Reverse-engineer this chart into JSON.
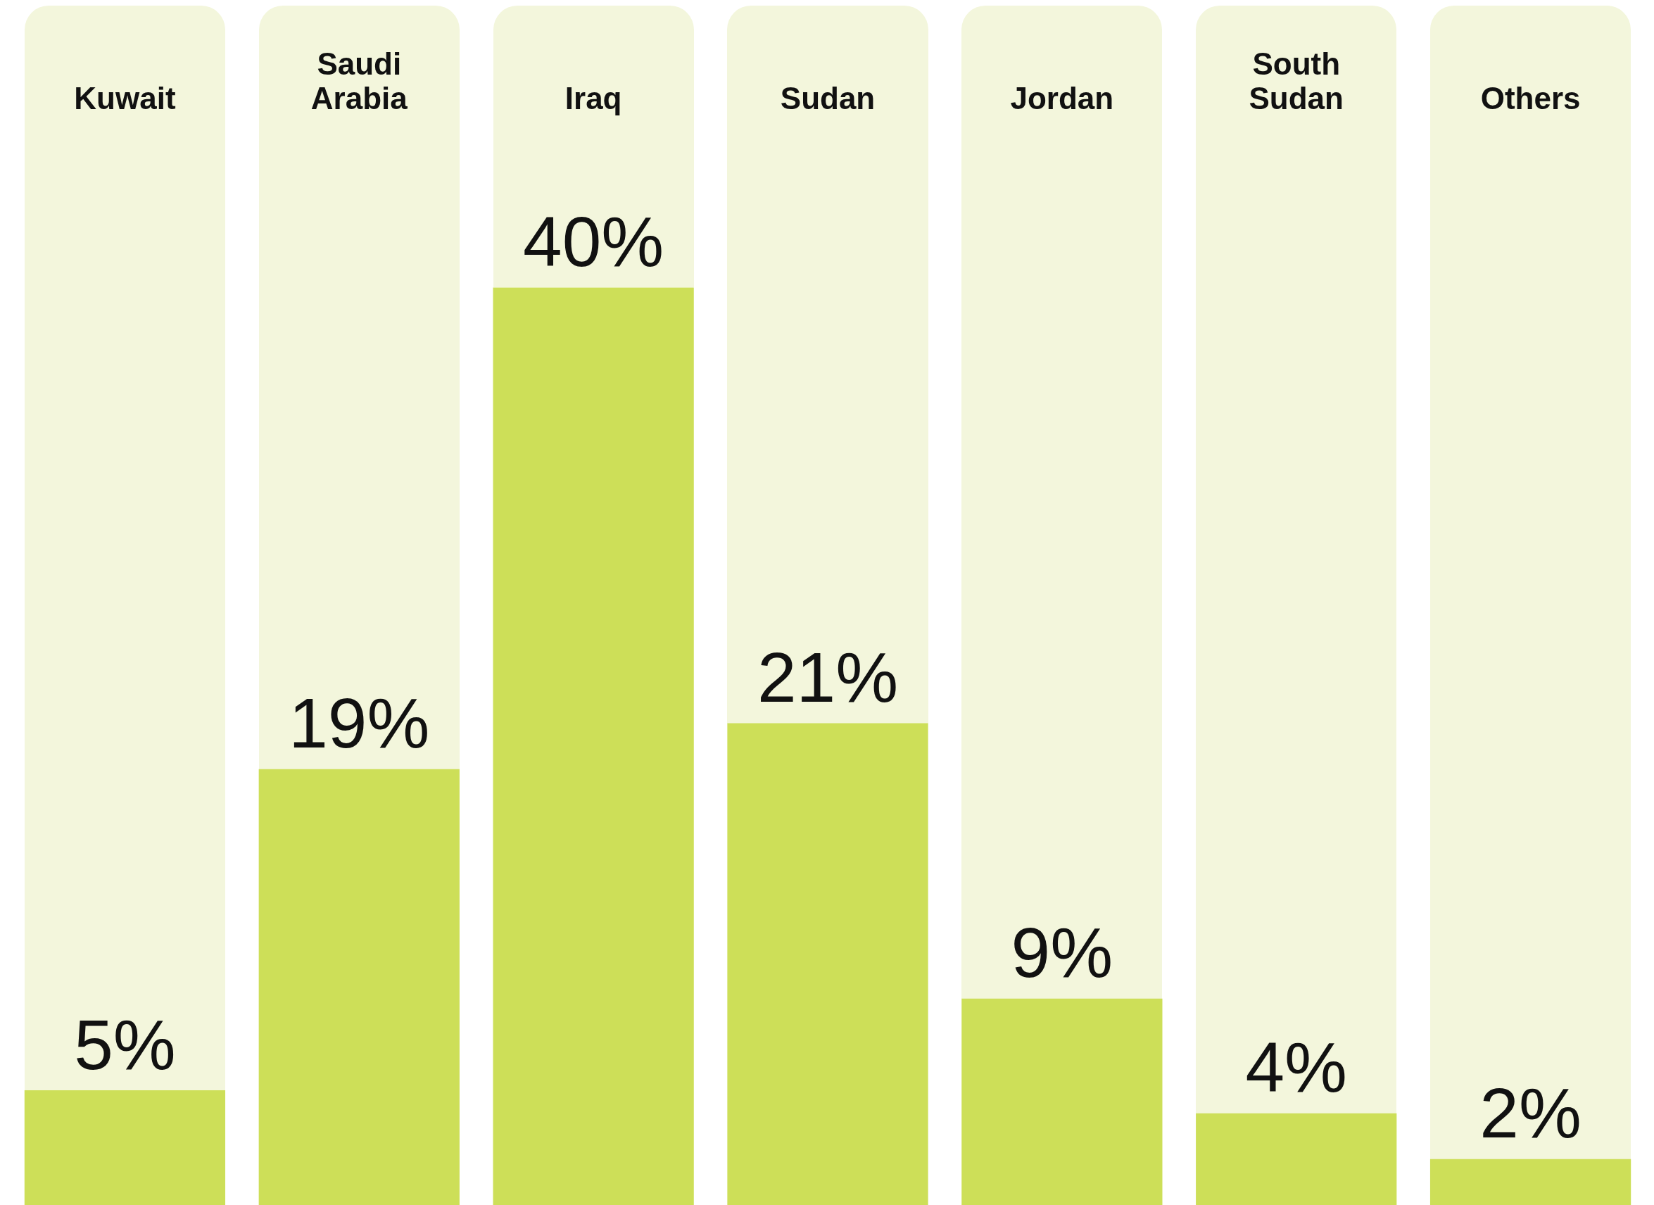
{
  "chart_data": {
    "type": "bar",
    "categories": [
      "Kuwait",
      "Saudi Arabia",
      "Iraq",
      "Sudan",
      "Jordan",
      "South Sudan",
      "Others"
    ],
    "values": [
      5,
      19,
      40,
      21,
      9,
      4,
      2
    ],
    "value_labels": [
      "5%",
      "19%",
      "40%",
      "21%",
      "9%",
      "4%",
      "2%"
    ],
    "color": "#cddf58",
    "legend": false,
    "grid": false
  }
}
